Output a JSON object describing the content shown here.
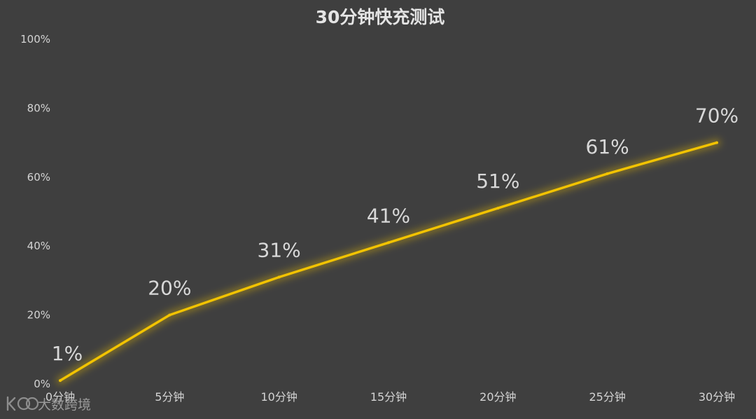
{
  "chart_data": {
    "type": "line",
    "title": "30分钟快充测试",
    "categories": [
      "0分钟",
      "5分钟",
      "10分钟",
      "15分钟",
      "20分钟",
      "25分钟",
      "30分钟"
    ],
    "x": [
      0,
      5,
      10,
      15,
      20,
      25,
      30
    ],
    "series": [
      {
        "values": [
          1,
          20,
          31,
          41,
          51,
          61,
          70
        ],
        "labels": [
          "1%",
          "20%",
          "31%",
          "41%",
          "51%",
          "61%",
          "70%"
        ],
        "color": "#f2c300"
      }
    ],
    "y_ticks": [
      "0%",
      "20%",
      "40%",
      "60%",
      "80%",
      "100%"
    ],
    "y_tick_values": [
      0,
      20,
      40,
      60,
      80,
      100
    ],
    "ylim": [
      0,
      100
    ],
    "xlim": [
      0,
      30
    ],
    "grid": false,
    "legend": "none",
    "background": "#3f3f3f",
    "line_glow": true
  },
  "watermark": {
    "text": "大数跨境",
    "icon": "k-logo-icon"
  }
}
